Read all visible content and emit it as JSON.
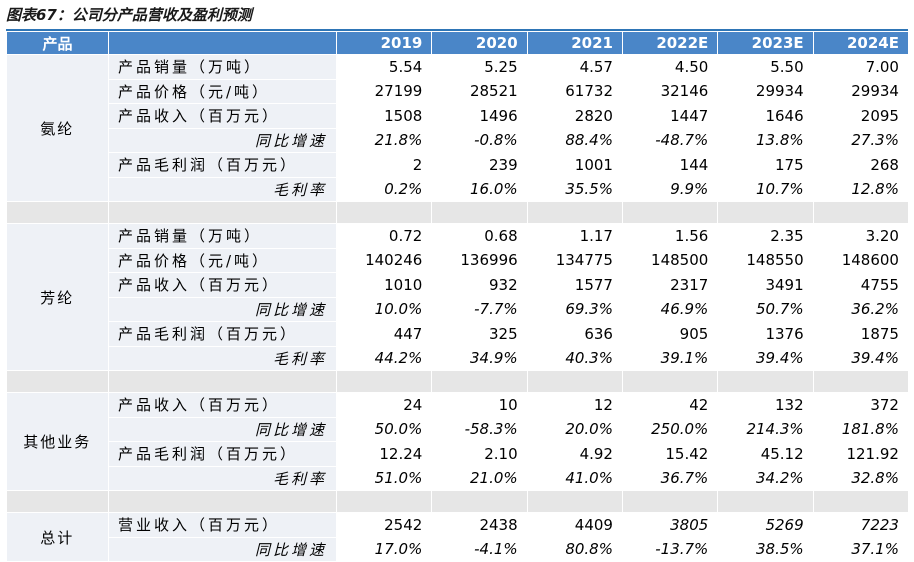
{
  "title": "图表67：公司分产品营收及盈利预测",
  "header": {
    "product": "产品",
    "years": [
      "2019",
      "2020",
      "2021",
      "2022E",
      "2023E",
      "2024E"
    ]
  },
  "groups": [
    {
      "name": "氨纶",
      "rows": [
        {
          "label": "产品销量（万吨）",
          "sub": false,
          "values": [
            "5.54",
            "5.25",
            "4.57",
            "4.50",
            "5.50",
            "7.00"
          ]
        },
        {
          "label": "产品价格（元/吨）",
          "sub": false,
          "values": [
            "27199",
            "28521",
            "61732",
            "32146",
            "29934",
            "29934"
          ]
        },
        {
          "label": "产品收入（百万元）",
          "sub": false,
          "values": [
            "1508",
            "1496",
            "2820",
            "1447",
            "1646",
            "2095"
          ]
        },
        {
          "label": "同比增速",
          "sub": true,
          "values": [
            "21.8%",
            "-0.8%",
            "88.4%",
            "-48.7%",
            "13.8%",
            "27.3%"
          ]
        },
        {
          "label": "产品毛利润（百万元）",
          "sub": false,
          "values": [
            "2",
            "239",
            "1001",
            "144",
            "175",
            "268"
          ]
        },
        {
          "label": "毛利率",
          "sub": true,
          "values": [
            "0.2%",
            "16.0%",
            "35.5%",
            "9.9%",
            "10.7%",
            "12.8%"
          ]
        }
      ]
    },
    {
      "name": "芳纶",
      "rows": [
        {
          "label": "产品销量（万吨）",
          "sub": false,
          "values": [
            "0.72",
            "0.68",
            "1.17",
            "1.56",
            "2.35",
            "3.20"
          ]
        },
        {
          "label": "产品价格（元/吨）",
          "sub": false,
          "values": [
            "140246",
            "136996",
            "134775",
            "148500",
            "148550",
            "148600"
          ]
        },
        {
          "label": "产品收入（百万元）",
          "sub": false,
          "values": [
            "1010",
            "932",
            "1577",
            "2317",
            "3491",
            "4755"
          ]
        },
        {
          "label": "同比增速",
          "sub": true,
          "values": [
            "10.0%",
            "-7.7%",
            "69.3%",
            "46.9%",
            "50.7%",
            "36.2%"
          ]
        },
        {
          "label": "产品毛利润（百万元）",
          "sub": false,
          "values": [
            "447",
            "325",
            "636",
            "905",
            "1376",
            "1875"
          ]
        },
        {
          "label": "毛利率",
          "sub": true,
          "values": [
            "44.2%",
            "34.9%",
            "40.3%",
            "39.1%",
            "39.4%",
            "39.4%"
          ]
        }
      ]
    },
    {
      "name": "其他业务",
      "rows": [
        {
          "label": "产品收入（百万元）",
          "sub": false,
          "values": [
            "24",
            "10",
            "12",
            "42",
            "132",
            "372"
          ]
        },
        {
          "label": "同比增速",
          "sub": true,
          "values": [
            "50.0%",
            "-58.3%",
            "20.0%",
            "250.0%",
            "214.3%",
            "181.8%"
          ]
        },
        {
          "label": "产品毛利润（百万元）",
          "sub": false,
          "values": [
            "12.24",
            "2.10",
            "4.92",
            "15.42",
            "45.12",
            "121.92"
          ]
        },
        {
          "label": "毛利率",
          "sub": true,
          "values": [
            "51.0%",
            "21.0%",
            "41.0%",
            "36.7%",
            "34.2%",
            "32.8%"
          ]
        }
      ]
    },
    {
      "name": "总计",
      "rows": [
        {
          "label": "营业收入（百万元）",
          "sub": false,
          "values": [
            "2542",
            "2438",
            "4409",
            "3805",
            "5269",
            "7223"
          ],
          "italic_from": 3
        },
        {
          "label": "同比增速",
          "sub": true,
          "values": [
            "17.0%",
            "-4.1%",
            "80.8%",
            "-13.7%",
            "38.5%",
            "37.1%"
          ]
        }
      ]
    }
  ]
}
